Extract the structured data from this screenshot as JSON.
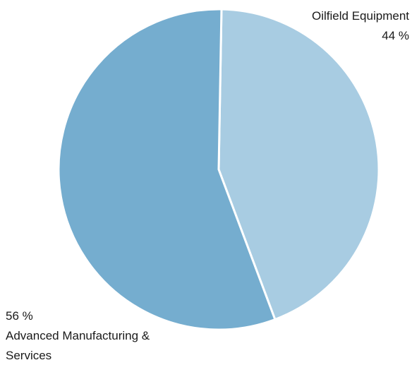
{
  "chart_data": {
    "type": "pie",
    "start_angle_deg": 1,
    "direction": "clockwise",
    "slices": [
      {
        "name_lines": [
          "Oilfield Equipment"
        ],
        "value": 44,
        "value_label": "44 %",
        "color": "#a8cce2"
      },
      {
        "name_lines": [
          "Advanced Manufacturing &",
          "Services"
        ],
        "value": 56,
        "value_label": "56 %",
        "color": "#75adcf"
      }
    ]
  }
}
